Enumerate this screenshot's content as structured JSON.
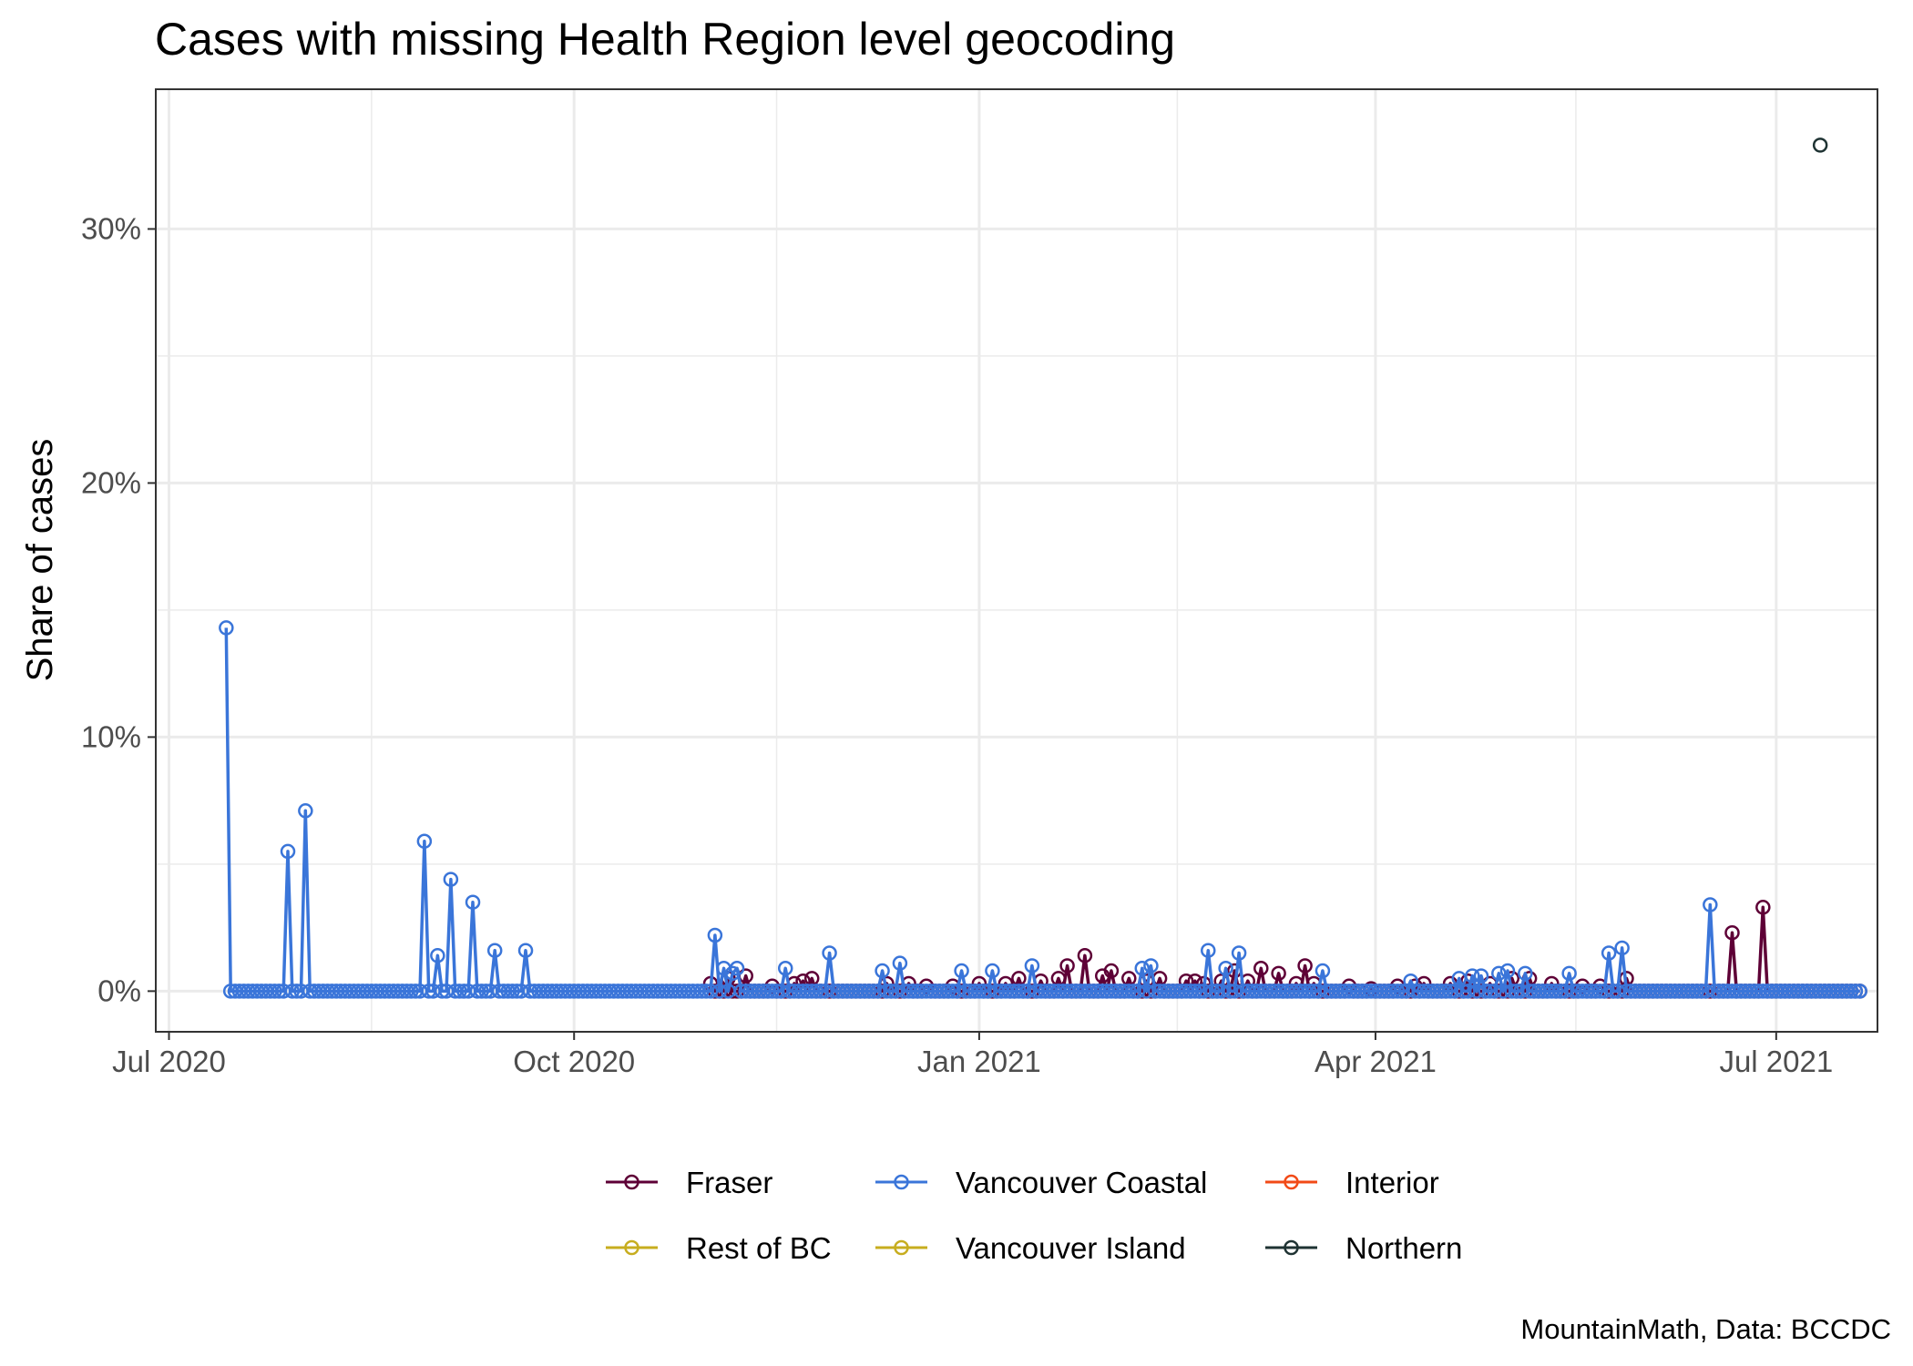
{
  "chart_data": {
    "type": "line",
    "title": "Cases with missing Health Region level geocoding",
    "xlabel": "",
    "ylabel": "Share of cases",
    "caption": "MountainMath, Data: BCCDC",
    "x_axis": {
      "type": "date",
      "range": [
        "2020-06-28",
        "2021-07-24"
      ],
      "ticks": [
        {
          "date": "2020-07-01",
          "label": "Jul 2020"
        },
        {
          "date": "2020-10-01",
          "label": "Oct 2020"
        },
        {
          "date": "2021-01-01",
          "label": "Jan 2021"
        },
        {
          "date": "2021-04-01",
          "label": "Apr 2021"
        },
        {
          "date": "2021-07-01",
          "label": "Jul 2021"
        }
      ]
    },
    "y_axis": {
      "unit": "percent",
      "ylim": [
        -1.6,
        35.5
      ],
      "ticks": [
        {
          "value": 0,
          "label": "0%"
        },
        {
          "value": 10,
          "label": "10%"
        },
        {
          "value": 20,
          "label": "20%"
        },
        {
          "value": 30,
          "label": "30%"
        }
      ],
      "minor_ticks": [
        5,
        15,
        25
      ]
    },
    "grid": true,
    "legend": {
      "position": "bottom"
    },
    "series": [
      {
        "name": "Fraser",
        "color": "#5e0036",
        "baseline": {
          "start": "2020-11-01",
          "end": "2021-07-20",
          "value": 0
        },
        "peaks": [
          {
            "date": "2020-11-01",
            "value": 0.3
          },
          {
            "date": "2020-11-05",
            "value": 0.5
          },
          {
            "date": "2020-11-09",
            "value": 0.6
          },
          {
            "date": "2020-11-15",
            "value": 0.2
          },
          {
            "date": "2020-11-20",
            "value": 0.3
          },
          {
            "date": "2020-11-22",
            "value": 0.4
          },
          {
            "date": "2020-11-24",
            "value": 0.5
          },
          {
            "date": "2020-12-11",
            "value": 0.3
          },
          {
            "date": "2020-12-16",
            "value": 0.3
          },
          {
            "date": "2020-12-20",
            "value": 0.2
          },
          {
            "date": "2020-12-26",
            "value": 0.2
          },
          {
            "date": "2021-01-01",
            "value": 0.3
          },
          {
            "date": "2021-01-07",
            "value": 0.3
          },
          {
            "date": "2021-01-10",
            "value": 0.5
          },
          {
            "date": "2021-01-15",
            "value": 0.4
          },
          {
            "date": "2021-01-19",
            "value": 0.5
          },
          {
            "date": "2021-01-21",
            "value": 1.0
          },
          {
            "date": "2021-01-25",
            "value": 1.4
          },
          {
            "date": "2021-01-29",
            "value": 0.6
          },
          {
            "date": "2021-01-31",
            "value": 0.8
          },
          {
            "date": "2021-02-04",
            "value": 0.5
          },
          {
            "date": "2021-02-08",
            "value": 0.4
          },
          {
            "date": "2021-02-11",
            "value": 0.5
          },
          {
            "date": "2021-02-17",
            "value": 0.4
          },
          {
            "date": "2021-02-19",
            "value": 0.4
          },
          {
            "date": "2021-02-21",
            "value": 0.3
          },
          {
            "date": "2021-02-25",
            "value": 0.4
          },
          {
            "date": "2021-02-28",
            "value": 0.8
          },
          {
            "date": "2021-03-03",
            "value": 0.4
          },
          {
            "date": "2021-03-06",
            "value": 0.9
          },
          {
            "date": "2021-03-10",
            "value": 0.7
          },
          {
            "date": "2021-03-14",
            "value": 0.3
          },
          {
            "date": "2021-03-16",
            "value": 1.0
          },
          {
            "date": "2021-03-18",
            "value": 0.3
          },
          {
            "date": "2021-03-26",
            "value": 0.2
          },
          {
            "date": "2021-03-31",
            "value": 0.1
          },
          {
            "date": "2021-04-06",
            "value": 0.2
          },
          {
            "date": "2021-04-10",
            "value": 0.2
          },
          {
            "date": "2021-04-12",
            "value": 0.3
          },
          {
            "date": "2021-04-18",
            "value": 0.3
          },
          {
            "date": "2021-04-22",
            "value": 0.4
          },
          {
            "date": "2021-04-27",
            "value": 0.3
          },
          {
            "date": "2021-05-02",
            "value": 0.5
          },
          {
            "date": "2021-05-06",
            "value": 0.5
          },
          {
            "date": "2021-05-11",
            "value": 0.3
          },
          {
            "date": "2021-05-18",
            "value": 0.2
          },
          {
            "date": "2021-05-22",
            "value": 0.2
          },
          {
            "date": "2021-05-28",
            "value": 0.5
          },
          {
            "date": "2021-06-21",
            "value": 2.3
          },
          {
            "date": "2021-06-28",
            "value": 3.3
          }
        ]
      },
      {
        "name": "Vancouver Coastal",
        "color": "#3a75d9",
        "baseline": {
          "start": "2020-07-15",
          "end": "2021-07-20",
          "value": 0
        },
        "peaks": [
          {
            "date": "2020-07-14",
            "value": 14.3
          },
          {
            "date": "2020-07-28",
            "value": 5.5
          },
          {
            "date": "2020-08-01",
            "value": 7.1
          },
          {
            "date": "2020-08-28",
            "value": 5.9
          },
          {
            "date": "2020-08-31",
            "value": 1.4
          },
          {
            "date": "2020-09-03",
            "value": 4.4
          },
          {
            "date": "2020-09-08",
            "value": 3.5
          },
          {
            "date": "2020-09-13",
            "value": 1.6
          },
          {
            "date": "2020-09-20",
            "value": 1.6
          },
          {
            "date": "2020-11-02",
            "value": 2.2
          },
          {
            "date": "2020-11-04",
            "value": 0.9
          },
          {
            "date": "2020-11-06",
            "value": 0.7
          },
          {
            "date": "2020-11-07",
            "value": 0.9
          },
          {
            "date": "2020-11-18",
            "value": 0.9
          },
          {
            "date": "2020-11-28",
            "value": 1.5
          },
          {
            "date": "2020-12-10",
            "value": 0.8
          },
          {
            "date": "2020-12-14",
            "value": 1.1
          },
          {
            "date": "2020-12-28",
            "value": 0.8
          },
          {
            "date": "2021-01-04",
            "value": 0.8
          },
          {
            "date": "2021-01-13",
            "value": 1.0
          },
          {
            "date": "2021-02-07",
            "value": 0.9
          },
          {
            "date": "2021-02-09",
            "value": 1.0
          },
          {
            "date": "2021-02-22",
            "value": 1.6
          },
          {
            "date": "2021-02-26",
            "value": 0.9
          },
          {
            "date": "2021-03-01",
            "value": 1.5
          },
          {
            "date": "2021-03-20",
            "value": 0.8
          },
          {
            "date": "2021-04-09",
            "value": 0.4
          },
          {
            "date": "2021-04-20",
            "value": 0.5
          },
          {
            "date": "2021-04-23",
            "value": 0.6
          },
          {
            "date": "2021-04-25",
            "value": 0.6
          },
          {
            "date": "2021-04-29",
            "value": 0.7
          },
          {
            "date": "2021-05-01",
            "value": 0.8
          },
          {
            "date": "2021-05-05",
            "value": 0.7
          },
          {
            "date": "2021-05-15",
            "value": 0.7
          },
          {
            "date": "2021-05-24",
            "value": 1.5
          },
          {
            "date": "2021-05-27",
            "value": 1.7
          },
          {
            "date": "2021-06-16",
            "value": 3.4
          }
        ]
      },
      {
        "name": "Interior",
        "color": "#f24a17",
        "points": []
      },
      {
        "name": "Rest of BC",
        "color": "#c7ad1f",
        "points": []
      },
      {
        "name": "Vancouver Island",
        "color": "#c7ad1f",
        "points": []
      },
      {
        "name": "Northern",
        "color": "#1f3333",
        "points": [
          {
            "date": "2021-07-11",
            "value": 33.3
          }
        ]
      }
    ]
  }
}
